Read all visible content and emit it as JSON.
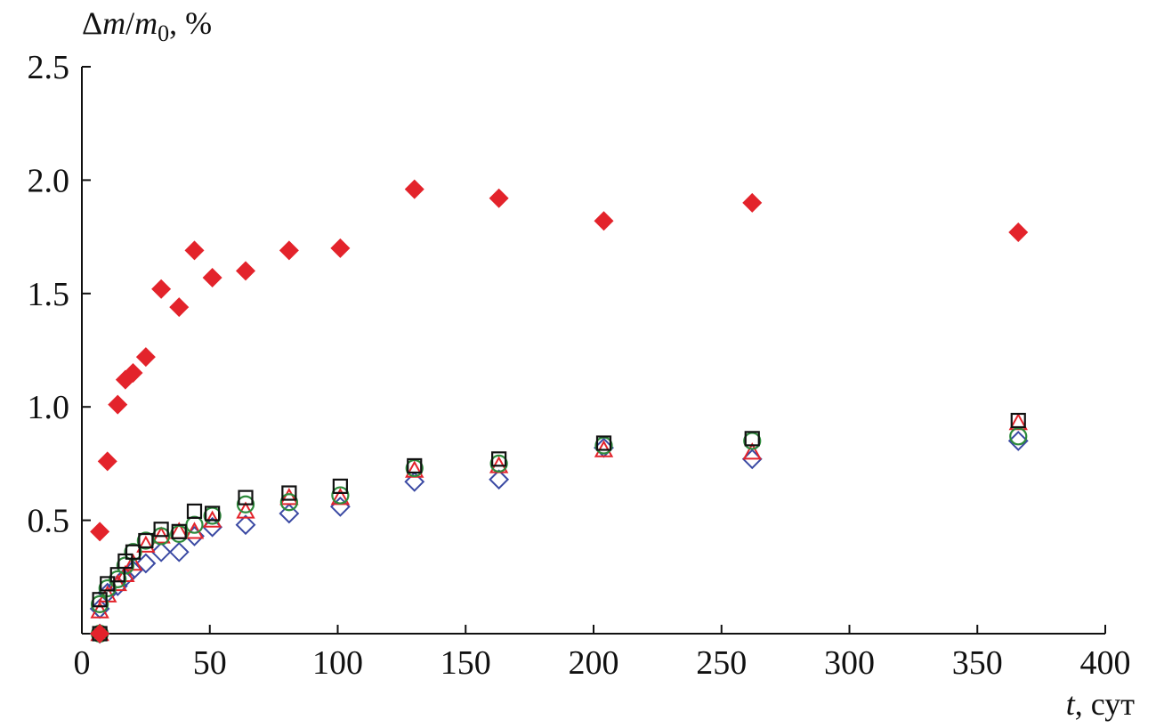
{
  "chart_data": {
    "type": "scatter",
    "title": "",
    "y_axis_title": {
      "delta": "Δ",
      "var": "m",
      "slash": "/",
      "var2": "m",
      "sub": "0",
      "unit": ", %"
    },
    "x_axis_title": {
      "var": "t",
      "unit": ", сут"
    },
    "xlim": [
      0,
      400
    ],
    "ylim": [
      0,
      2.5
    ],
    "x_ticks": [
      0,
      50,
      100,
      150,
      200,
      250,
      300,
      350,
      400
    ],
    "x_tick_labels": [
      "0",
      "50",
      "100",
      "150",
      "200",
      "250",
      "300",
      "350",
      "400"
    ],
    "y_ticks": [
      0.5,
      1.0,
      1.5,
      2.0,
      2.5
    ],
    "y_tick_labels": [
      "0.5",
      "1.0",
      "1.5",
      "2.0",
      "2.5"
    ],
    "grid": false,
    "legend": "none",
    "series": [
      {
        "marker": "filled-diamond",
        "color": "#e3232b",
        "points": [
          [
            7,
            0.0
          ],
          [
            7,
            0.45
          ],
          [
            10,
            0.76
          ],
          [
            14,
            1.01
          ],
          [
            17,
            1.12
          ],
          [
            20,
            1.15
          ],
          [
            25,
            1.22
          ],
          [
            31,
            1.52
          ],
          [
            38,
            1.44
          ],
          [
            44,
            1.69
          ],
          [
            51,
            1.57
          ],
          [
            64,
            1.6
          ],
          [
            81,
            1.69
          ],
          [
            101,
            1.7
          ],
          [
            130,
            1.96
          ],
          [
            163,
            1.92
          ],
          [
            204,
            1.82
          ],
          [
            262,
            1.9
          ],
          [
            366,
            1.77
          ]
        ]
      },
      {
        "marker": "open-diamond",
        "color": "#3a49a3",
        "points": [
          [
            7,
            0.0
          ],
          [
            7,
            0.11
          ],
          [
            10,
            0.18
          ],
          [
            14,
            0.21
          ],
          [
            17,
            0.25
          ],
          [
            20,
            0.28
          ],
          [
            25,
            0.31
          ],
          [
            31,
            0.36
          ],
          [
            38,
            0.36
          ],
          [
            44,
            0.43
          ],
          [
            51,
            0.47
          ],
          [
            64,
            0.48
          ],
          [
            81,
            0.53
          ],
          [
            101,
            0.56
          ],
          [
            130,
            0.67
          ],
          [
            163,
            0.68
          ],
          [
            204,
            0.82
          ],
          [
            262,
            0.77
          ],
          [
            366,
            0.85
          ]
        ]
      },
      {
        "marker": "open-triangle",
        "color": "#e3232b",
        "points": [
          [
            7,
            0.0
          ],
          [
            7,
            0.1
          ],
          [
            10,
            0.17
          ],
          [
            14,
            0.22
          ],
          [
            17,
            0.26
          ],
          [
            20,
            0.31
          ],
          [
            25,
            0.39
          ],
          [
            31,
            0.43
          ],
          [
            38,
            0.45
          ],
          [
            44,
            0.45
          ],
          [
            51,
            0.5
          ],
          [
            64,
            0.54
          ],
          [
            81,
            0.6
          ],
          [
            101,
            0.6
          ],
          [
            130,
            0.72
          ],
          [
            163,
            0.74
          ],
          [
            204,
            0.81
          ],
          [
            262,
            0.8
          ],
          [
            366,
            0.93
          ]
        ]
      },
      {
        "marker": "open-circle",
        "color": "#2e8b3c",
        "points": [
          [
            7,
            0.0
          ],
          [
            7,
            0.13
          ],
          [
            10,
            0.2
          ],
          [
            14,
            0.24
          ],
          [
            17,
            0.3
          ],
          [
            20,
            0.36
          ],
          [
            25,
            0.41
          ],
          [
            31,
            0.43
          ],
          [
            38,
            0.44
          ],
          [
            44,
            0.48
          ],
          [
            51,
            0.52
          ],
          [
            64,
            0.57
          ],
          [
            81,
            0.58
          ],
          [
            101,
            0.61
          ],
          [
            130,
            0.73
          ],
          [
            163,
            0.75
          ],
          [
            204,
            0.83
          ],
          [
            262,
            0.85
          ],
          [
            366,
            0.87
          ]
        ]
      },
      {
        "marker": "open-square",
        "color": "#111111",
        "points": [
          [
            7,
            0.0
          ],
          [
            7,
            0.15
          ],
          [
            10,
            0.22
          ],
          [
            14,
            0.26
          ],
          [
            17,
            0.32
          ],
          [
            20,
            0.36
          ],
          [
            25,
            0.41
          ],
          [
            31,
            0.46
          ],
          [
            38,
            0.45
          ],
          [
            44,
            0.54
          ],
          [
            51,
            0.53
          ],
          [
            64,
            0.6
          ],
          [
            81,
            0.62
          ],
          [
            101,
            0.65
          ],
          [
            130,
            0.74
          ],
          [
            163,
            0.77
          ],
          [
            204,
            0.84
          ],
          [
            262,
            0.86
          ],
          [
            366,
            0.94
          ]
        ]
      }
    ]
  }
}
